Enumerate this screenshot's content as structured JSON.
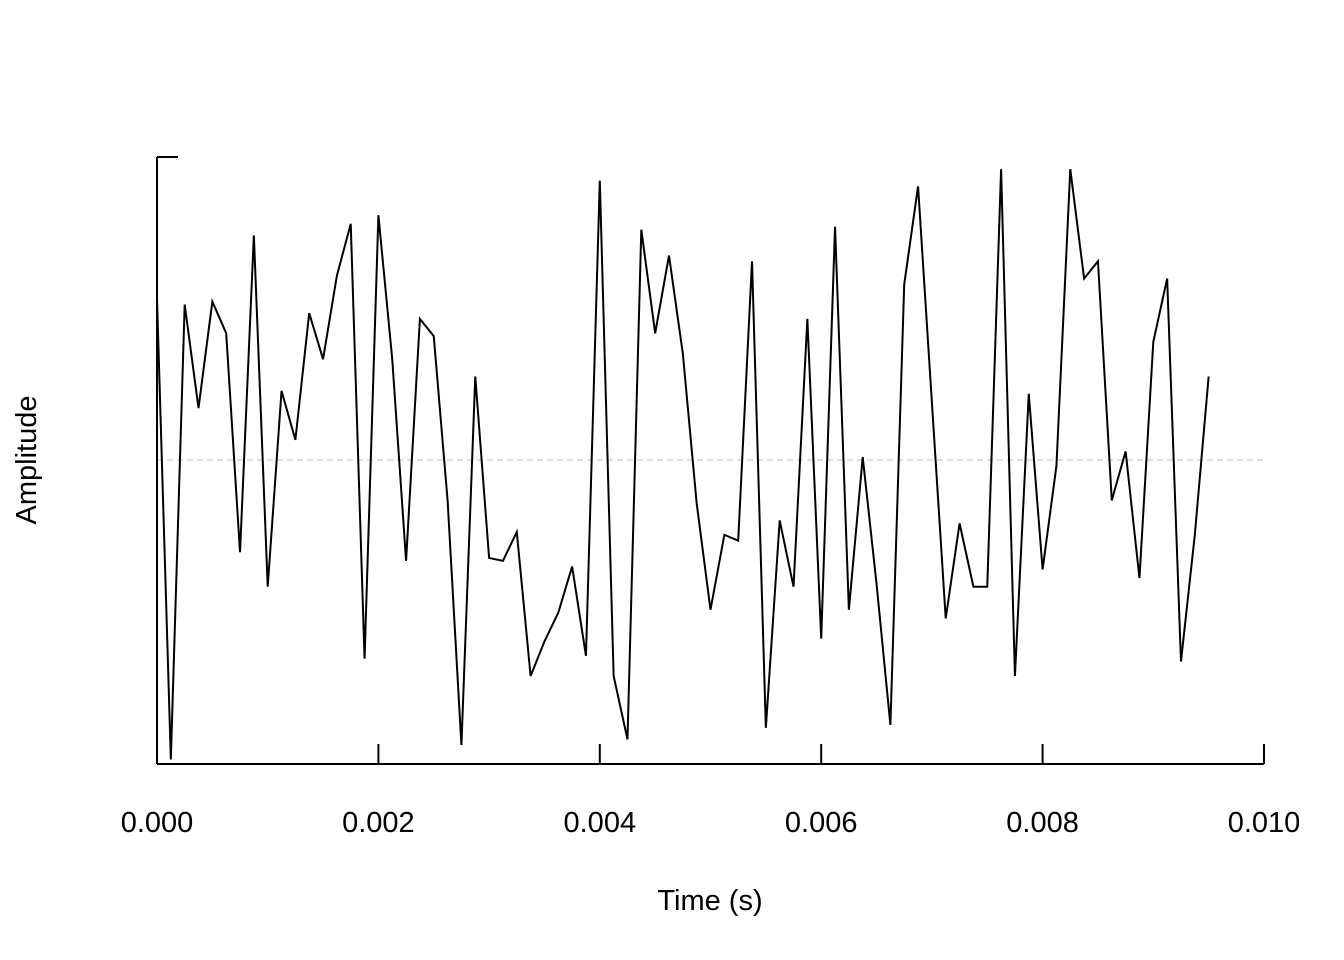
{
  "chart_data": {
    "type": "line",
    "title": "",
    "xlabel": "Time (s)",
    "ylabel": "Amplitude",
    "xlim": [
      0,
      0.01
    ],
    "ylim": [
      -1,
      1
    ],
    "grid": false,
    "legend": "none",
    "x_ticks": [
      0,
      0.002,
      0.004,
      0.006,
      0.008,
      0.01
    ],
    "x_tick_labels": [
      "0.000",
      "0.002",
      "0.004",
      "0.006",
      "0.008",
      "0.010"
    ],
    "reference_line": {
      "y": 0,
      "style": "dashed",
      "color": "#d3d3d3"
    },
    "series": [
      {
        "color": "#000000",
        "sample_interval": 0.000125,
        "x_start": 0,
        "values": [
          0.56,
          -1.04,
          0.54,
          0.18,
          0.55,
          0.44,
          -0.32,
          0.78,
          -0.44,
          0.24,
          0.07,
          0.51,
          0.35,
          0.64,
          0.82,
          -0.69,
          0.85,
          0.35,
          -0.35,
          0.49,
          0.43,
          -0.14,
          -0.99,
          0.29,
          -0.34,
          -0.35,
          -0.25,
          -0.75,
          -0.63,
          -0.53,
          -0.37,
          -0.68,
          0.97,
          -0.75,
          -0.97,
          0.8,
          0.44,
          0.71,
          0.37,
          -0.15,
          -0.52,
          -0.26,
          -0.28,
          0.69,
          -0.93,
          -0.21,
          -0.44,
          0.49,
          -0.62,
          0.81,
          -0.52,
          0.01,
          -0.43,
          -0.92,
          0.61,
          0.95,
          0.2,
          -0.55,
          -0.22,
          -0.44,
          -0.44,
          1.01,
          -0.75,
          0.23,
          -0.38,
          -0.02,
          1.01,
          0.63,
          0.69,
          -0.14,
          0.03,
          -0.41,
          0.41,
          0.63,
          -0.7,
          -0.26,
          0.29
        ]
      }
    ]
  }
}
